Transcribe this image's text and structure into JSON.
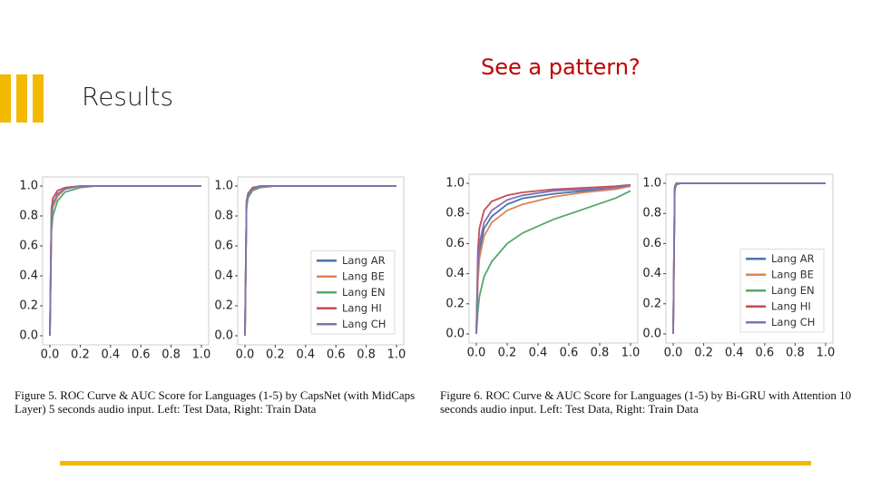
{
  "header": {
    "title": "Results",
    "subtitle": "See a pattern?"
  },
  "captions": [
    "Figure 5.   ROC Curve & AUC Score for Languages (1-5) by CapsNet (with MidCaps Layer) 5 seconds audio input. Left: Test Data, Right: Train Data",
    "Figure 6.   ROC Curve & AUC Score for Languages (1-5) by Bi-GRU with Attention 10 seconds audio input. Left: Test Data, Right: Train Data"
  ],
  "chart_data": [
    {
      "type": "line",
      "x": [
        0,
        0.01,
        0.02,
        0.05,
        0.1,
        0.2,
        0.3,
        0.5,
        0.7,
        0.9,
        1.0
      ],
      "xlim": [
        0,
        1
      ],
      "ylim": [
        0,
        1
      ],
      "xticks": [
        {
          "value": 0,
          "label": "0.0"
        },
        0.2,
        0.4,
        0.6,
        0.8,
        {
          "value": 1,
          "label": "1.0"
        }
      ],
      "yticks": [
        {
          "value": 0,
          "label": "0.0"
        },
        0.2,
        0.4,
        0.6,
        0.8,
        {
          "value": 1,
          "label": "1.0"
        }
      ],
      "series": [
        {
          "color": "#4c72b0",
          "values": [
            0,
            0.78,
            0.87,
            0.94,
            0.98,
            1,
            1,
            1,
            1,
            1,
            1
          ]
        },
        {
          "color": "#dd8452",
          "values": [
            0,
            0.76,
            0.86,
            0.93,
            0.98,
            1,
            1,
            1,
            1,
            1,
            1
          ]
        },
        {
          "color": "#55a868",
          "values": [
            0,
            0.7,
            0.8,
            0.9,
            0.96,
            0.99,
            1,
            1,
            1,
            1,
            1
          ]
        },
        {
          "color": "#c44e52",
          "values": [
            0,
            0.85,
            0.92,
            0.97,
            0.99,
            1,
            1,
            1,
            1,
            1,
            1
          ]
        },
        {
          "color": "#8172b3",
          "values": [
            0,
            0.8,
            0.88,
            0.95,
            0.98,
            1,
            1,
            1,
            1,
            1,
            1
          ]
        }
      ]
    },
    {
      "type": "line",
      "x": [
        0,
        0.01,
        0.02,
        0.05,
        0.1,
        0.2,
        0.3,
        0.5,
        0.7,
        0.9,
        1.0
      ],
      "xlim": [
        0,
        1
      ],
      "ylim": [
        0,
        1
      ],
      "xticks": [
        {
          "value": 0,
          "label": "0.0"
        },
        0.2,
        0.4,
        0.6,
        0.8,
        {
          "value": 1,
          "label": "1.0"
        }
      ],
      "yticks": [
        {
          "value": 0,
          "label": "0.0"
        },
        0.2,
        0.4,
        0.6,
        0.8,
        {
          "value": 1,
          "label": "1.0"
        }
      ],
      "legend": "lower right",
      "series": [
        {
          "name": "Lang AR",
          "color": "#4c72b0",
          "values": [
            0,
            0.88,
            0.94,
            0.98,
            1,
            1,
            1,
            1,
            1,
            1,
            1
          ]
        },
        {
          "name": "Lang BE",
          "color": "#dd8452",
          "values": [
            0,
            0.87,
            0.93,
            0.98,
            1,
            1,
            1,
            1,
            1,
            1,
            1
          ]
        },
        {
          "name": "Lang EN",
          "color": "#55a868",
          "values": [
            0,
            0.85,
            0.92,
            0.97,
            0.99,
            1,
            1,
            1,
            1,
            1,
            1
          ]
        },
        {
          "name": "Lang HI",
          "color": "#c44e52",
          "values": [
            0,
            0.9,
            0.95,
            0.99,
            1,
            1,
            1,
            1,
            1,
            1,
            1
          ]
        },
        {
          "name": "Lang CH",
          "color": "#8172b3",
          "values": [
            0,
            0.89,
            0.94,
            0.98,
            1,
            1,
            1,
            1,
            1,
            1,
            1
          ]
        }
      ]
    },
    {
      "type": "line",
      "x": [
        0,
        0.01,
        0.02,
        0.05,
        0.1,
        0.2,
        0.3,
        0.5,
        0.7,
        0.9,
        1.0
      ],
      "xlim": [
        0,
        1
      ],
      "ylim": [
        0,
        1
      ],
      "xticks": [
        {
          "value": 0,
          "label": "0.0"
        },
        0.2,
        0.4,
        0.6,
        0.8,
        {
          "value": 1,
          "label": "1.0"
        }
      ],
      "yticks": [
        {
          "value": 0,
          "label": "0.0"
        },
        0.2,
        0.4,
        0.6,
        0.8,
        {
          "value": 1,
          "label": "1.0"
        }
      ],
      "series": [
        {
          "color": "#4c72b0",
          "values": [
            0,
            0.4,
            0.55,
            0.7,
            0.78,
            0.86,
            0.9,
            0.93,
            0.95,
            0.97,
            0.98
          ]
        },
        {
          "color": "#dd8452",
          "values": [
            0,
            0.35,
            0.5,
            0.65,
            0.74,
            0.82,
            0.86,
            0.91,
            0.94,
            0.96,
            0.98
          ]
        },
        {
          "color": "#55a868",
          "values": [
            0,
            0.15,
            0.25,
            0.38,
            0.48,
            0.6,
            0.67,
            0.76,
            0.83,
            0.9,
            0.95
          ]
        },
        {
          "color": "#c44e52",
          "values": [
            0,
            0.55,
            0.7,
            0.82,
            0.88,
            0.92,
            0.94,
            0.96,
            0.97,
            0.98,
            0.99
          ]
        },
        {
          "color": "#8172b3",
          "values": [
            0,
            0.45,
            0.6,
            0.74,
            0.82,
            0.89,
            0.92,
            0.95,
            0.96,
            0.97,
            0.99
          ]
        }
      ]
    },
    {
      "type": "line",
      "x": [
        0,
        0.01,
        0.02,
        0.05,
        0.1,
        0.2,
        0.3,
        0.5,
        0.7,
        0.9,
        1.0
      ],
      "xlim": [
        0,
        1
      ],
      "ylim": [
        0,
        1
      ],
      "xticks": [
        {
          "value": 0,
          "label": "0.0"
        },
        0.2,
        0.4,
        0.6,
        0.8,
        {
          "value": 1,
          "label": "1.0"
        }
      ],
      "yticks": [
        {
          "value": 0,
          "label": "0.0"
        },
        0.2,
        0.4,
        0.6,
        0.8,
        {
          "value": 1,
          "label": "1.0"
        }
      ],
      "legend": "lower right",
      "series": [
        {
          "name": "Lang AR",
          "color": "#4c72b0",
          "values": [
            0,
            0.97,
            1,
            1,
            1,
            1,
            1,
            1,
            1,
            1,
            1
          ]
        },
        {
          "name": "Lang BE",
          "color": "#dd8452",
          "values": [
            0,
            0.96,
            1,
            1,
            1,
            1,
            1,
            1,
            1,
            1,
            1
          ]
        },
        {
          "name": "Lang EN",
          "color": "#55a868",
          "values": [
            0,
            0.95,
            0.99,
            1,
            1,
            1,
            1,
            1,
            1,
            1,
            1
          ]
        },
        {
          "name": "Lang HI",
          "color": "#c44e52",
          "values": [
            0,
            0.98,
            1,
            1,
            1,
            1,
            1,
            1,
            1,
            1,
            1
          ]
        },
        {
          "name": "Lang CH",
          "color": "#8172b3",
          "values": [
            0,
            0.97,
            1,
            1,
            1,
            1,
            1,
            1,
            1,
            1,
            1
          ]
        }
      ]
    }
  ]
}
